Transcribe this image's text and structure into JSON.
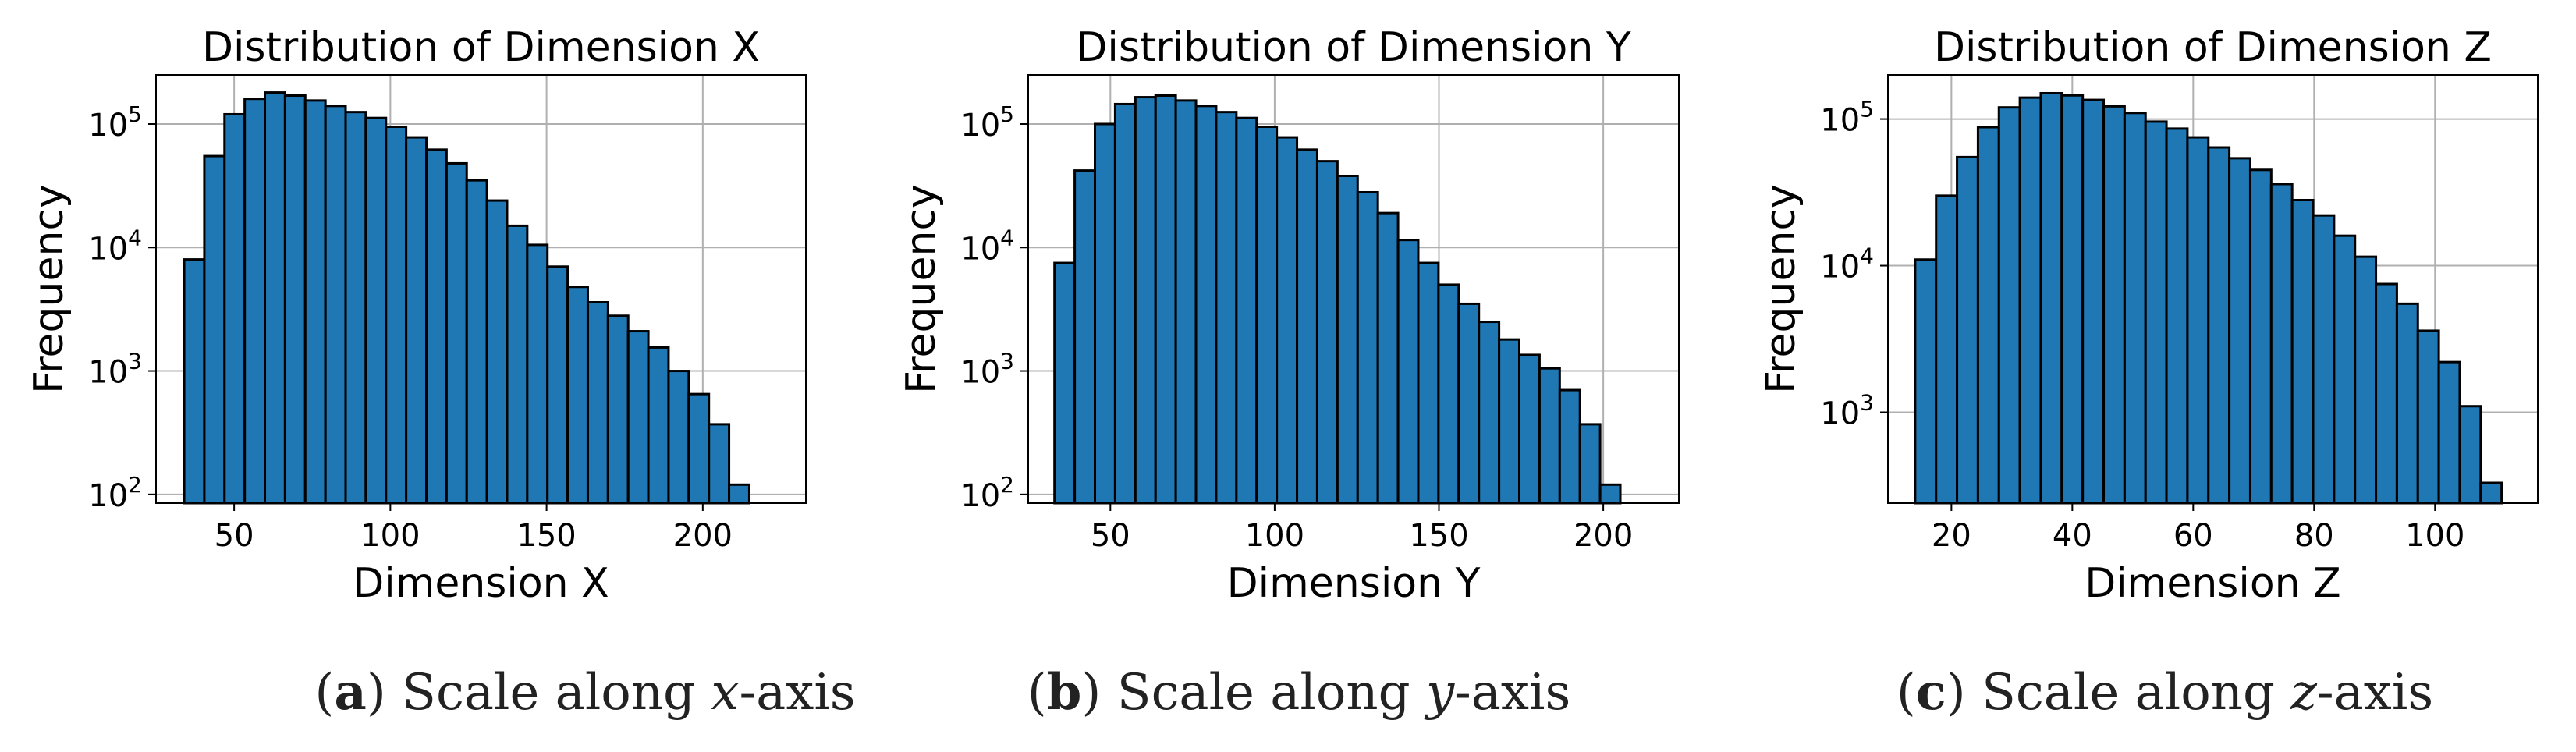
{
  "colors": {
    "bar_fill": "#1f77b4",
    "bar_edge": "#000000",
    "grid": "#b0b0b0",
    "axis": "#000000"
  },
  "chart_data": [
    {
      "type": "bar",
      "title": "Distribution of Dimension X",
      "xlabel": "Dimension X",
      "ylabel": "Frequency",
      "yscale": "log",
      "grid": true,
      "xlim": [
        25,
        233
      ],
      "ylim": [
        85,
        250000
      ],
      "xticks": [
        50,
        100,
        150,
        200
      ],
      "yticks": [
        {
          "value": 100,
          "base": "10",
          "exp": "2"
        },
        {
          "value": 1000,
          "base": "10",
          "exp": "3"
        },
        {
          "value": 10000,
          "base": "10",
          "exp": "4"
        },
        {
          "value": 100000,
          "base": "10",
          "exp": "5"
        }
      ],
      "bin_width": 6.46,
      "bin_edges_start": 34,
      "values": [
        8000,
        55000,
        120000,
        160000,
        180000,
        170000,
        155000,
        140000,
        125000,
        112000,
        95000,
        78000,
        62000,
        48000,
        35000,
        24000,
        15000,
        10500,
        7000,
        4800,
        3600,
        2800,
        2100,
        1550,
        1000,
        650,
        370,
        120
      ]
    },
    {
      "type": "bar",
      "title": "Distribution of Dimension Y",
      "xlabel": "Dimension Y",
      "ylabel": "Frequency",
      "yscale": "log",
      "grid": true,
      "xlim": [
        25,
        223
      ],
      "ylim": [
        85,
        250000
      ],
      "xticks": [
        50,
        100,
        150,
        200
      ],
      "yticks": [
        {
          "value": 100,
          "base": "10",
          "exp": "2"
        },
        {
          "value": 1000,
          "base": "10",
          "exp": "3"
        },
        {
          "value": 10000,
          "base": "10",
          "exp": "4"
        },
        {
          "value": 100000,
          "base": "10",
          "exp": "5"
        }
      ],
      "bin_width": 6.15,
      "bin_edges_start": 33,
      "values": [
        7500,
        42000,
        100000,
        145000,
        165000,
        170000,
        155000,
        140000,
        125000,
        112000,
        95000,
        78000,
        62000,
        50000,
        38000,
        28000,
        19000,
        11500,
        7500,
        5000,
        3500,
        2500,
        1800,
        1350,
        1050,
        700,
        370,
        120
      ]
    },
    {
      "type": "bar",
      "title": "Distribution of Dimension Z",
      "xlabel": "Dimension Z",
      "ylabel": "Frequency",
      "yscale": "log",
      "grid": true,
      "xlim": [
        9.5,
        117
      ],
      "ylim": [
        240,
        200000
      ],
      "xticks": [
        20,
        40,
        60,
        80,
        100
      ],
      "yticks": [
        {
          "value": 1000,
          "base": "10",
          "exp": "3"
        },
        {
          "value": 10000,
          "base": "10",
          "exp": "4"
        },
        {
          "value": 100000,
          "base": "10",
          "exp": "5"
        }
      ],
      "bin_width": 3.465,
      "bin_edges_start": 14,
      "values": [
        11000,
        30000,
        55000,
        88000,
        120000,
        140000,
        150000,
        145000,
        135000,
        122000,
        110000,
        96000,
        86000,
        75000,
        64000,
        54000,
        45000,
        36000,
        28000,
        22000,
        16000,
        11500,
        7500,
        5500,
        3600,
        2200,
        1100,
        330
      ]
    }
  ],
  "captions": [
    {
      "letter": "a",
      "text": "Scale along ",
      "var": "x",
      "suffix": "-axis"
    },
    {
      "letter": "b",
      "text": "Scale along ",
      "var": "y",
      "suffix": "-axis"
    },
    {
      "letter": "c",
      "text": "Scale along ",
      "var": "z",
      "suffix": "-axis"
    }
  ]
}
